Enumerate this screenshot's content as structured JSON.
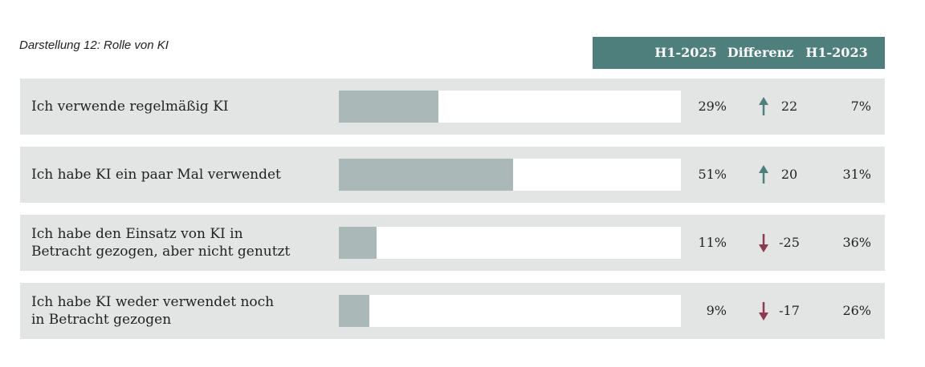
{
  "chart_data": {
    "type": "bar",
    "orientation": "horizontal",
    "title": "Darstellung 12: Rolle von KI",
    "column_headers": [
      "H1-2025",
      "Differenz",
      "H1-2023"
    ],
    "categories": [
      "Ich verwende regelmäßig KI",
      "Ich habe KI ein paar Mal verwendet",
      "Ich habe den Einsatz von KI in\nBetracht gezogen, aber nicht genutzt",
      "Ich habe KI weder verwendet noch\nin Betracht gezogen"
    ],
    "values": [
      29,
      51,
      11,
      9
    ],
    "value_labels": [
      "29%",
      "51%",
      "11%",
      "9%"
    ],
    "differences": [
      22,
      20,
      -25,
      -17
    ],
    "previous_values": [
      7,
      31,
      36,
      26
    ],
    "previous_value_labels": [
      "7%",
      "31%",
      "36%",
      "26%"
    ],
    "xlim": [
      0,
      100
    ],
    "color": "#aab8b8",
    "header_color": "#4f7f7c",
    "up_color": "#4f7f7c",
    "down_color": "#8b3a52"
  }
}
